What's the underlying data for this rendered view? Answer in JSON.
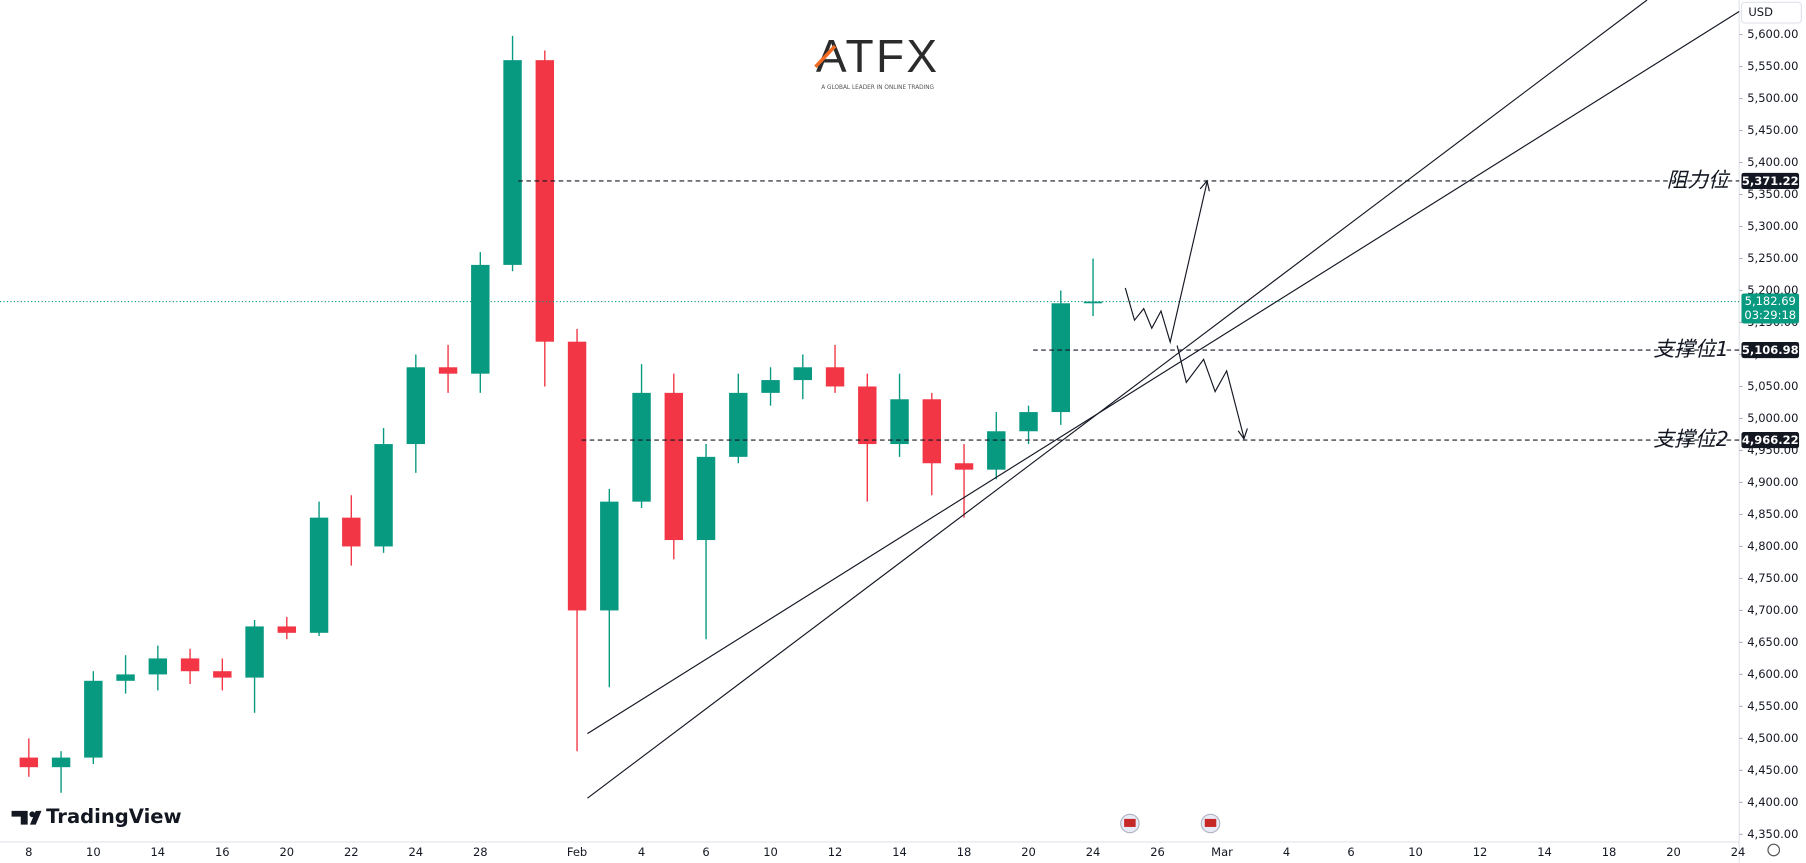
{
  "currency": "USD",
  "brand": {
    "name": "ATFX",
    "tagline": "A GLOBAL LEADER IN ONLINE TRADING"
  },
  "watermark": "TradingView",
  "countdown": "03:29:18",
  "chart_data": {
    "type": "candlestick",
    "up_color": "#089981",
    "down_color": "#f23645",
    "categories": [
      "8",
      null,
      "10",
      null,
      "14",
      null,
      "16",
      null,
      "20",
      null,
      "22",
      null,
      "24",
      null,
      "28",
      null,
      null,
      "Feb",
      null,
      "4",
      null,
      "6",
      null,
      "10",
      null,
      "12",
      null,
      "14",
      null,
      "18",
      null,
      "20",
      null,
      "24",
      null,
      "26",
      null,
      "Mar",
      null,
      "4",
      null,
      "6",
      null,
      "10",
      null,
      "12",
      null,
      "14",
      null,
      "18",
      null,
      "20",
      null,
      "24"
    ],
    "open": [
      4470,
      4455,
      4470,
      4590,
      4600,
      4625,
      4605,
      4595,
      4675,
      4665,
      4845,
      4800,
      4960,
      5080,
      5070,
      5240,
      5560,
      5120,
      4700,
      4870,
      5040,
      4810,
      4940,
      5040,
      5060,
      5080,
      5050,
      4960,
      5030,
      4930,
      4920,
      4980,
      5010,
      5180,
      null,
      null,
      null,
      null,
      null,
      null,
      null,
      null,
      null,
      null,
      null,
      null,
      null,
      null,
      null,
      null,
      null,
      null,
      null,
      null
    ],
    "high": [
      4500,
      4480,
      4605,
      4630,
      4645,
      4640,
      4625,
      4685,
      4690,
      4870,
      4880,
      4985,
      5100,
      5115,
      5260,
      5598,
      5575,
      5140,
      4890,
      5085,
      5070,
      4960,
      5070,
      5080,
      5100,
      5115,
      5070,
      5070,
      5040,
      4960,
      5010,
      5020,
      5200,
      5250,
      null,
      null,
      null,
      null,
      null,
      null,
      null,
      null,
      null,
      null,
      null,
      null,
      null,
      null,
      null,
      null,
      null,
      null,
      null,
      null
    ],
    "low": [
      4440,
      4415,
      4460,
      4570,
      4575,
      4585,
      4575,
      4540,
      4655,
      4660,
      4770,
      4790,
      4915,
      5040,
      5040,
      5230,
      5050,
      4480,
      4580,
      4860,
      4780,
      4655,
      4930,
      5020,
      5030,
      5040,
      4870,
      4940,
      4880,
      4845,
      4905,
      4960,
      4990,
      5160,
      null,
      null,
      null,
      null,
      null,
      null,
      null,
      null,
      null,
      null,
      null,
      null,
      null,
      null,
      null,
      null,
      null,
      null,
      null,
      null
    ],
    "close": [
      4455,
      4470,
      4590,
      4600,
      4625,
      4605,
      4595,
      4675,
      4665,
      4845,
      4800,
      4960,
      5080,
      5070,
      5240,
      5560,
      5120,
      4700,
      4870,
      5040,
      4810,
      4940,
      5040,
      5060,
      5080,
      5050,
      4960,
      5030,
      4930,
      4920,
      4980,
      5010,
      5180,
      5182.69,
      null,
      null,
      null,
      null,
      null,
      null,
      null,
      null,
      null,
      null,
      null,
      null,
      null,
      null,
      null,
      null,
      null,
      null,
      null,
      null
    ],
    "ylim": [
      4340,
      5654
    ],
    "yticks": [
      {
        "value": 4350,
        "label": "4,350.00"
      },
      {
        "value": 4400,
        "label": "4,400.00"
      },
      {
        "value": 4450,
        "label": "4,450.00"
      },
      {
        "value": 4500,
        "label": "4,500.00"
      },
      {
        "value": 4550,
        "label": "4,550.00"
      },
      {
        "value": 4600,
        "label": "4,600.00"
      },
      {
        "value": 4650,
        "label": "4,650.00"
      },
      {
        "value": 4700,
        "label": "4,700.00"
      },
      {
        "value": 4750,
        "label": "4,750.00"
      },
      {
        "value": 4800,
        "label": "4,800.00"
      },
      {
        "value": 4850,
        "label": "4,850.00"
      },
      {
        "value": 4900,
        "label": "4,900.00"
      },
      {
        "value": 4950,
        "label": "4,950.00"
      },
      {
        "value": 5000,
        "label": "5,000.00"
      },
      {
        "value": 5050,
        "label": "5,050.00"
      },
      {
        "value": 5100,
        "label": "5,100.00"
      },
      {
        "value": 5150,
        "label": "5,150.00"
      },
      {
        "value": 5200,
        "label": "5,200.00"
      },
      {
        "value": 5250,
        "label": "5,250.00"
      },
      {
        "value": 5300,
        "label": "5,300.00"
      },
      {
        "value": 5350,
        "label": "5,350.00"
      },
      {
        "value": 5400,
        "label": "5,400.00"
      },
      {
        "value": 5450,
        "label": "5,450.00"
      },
      {
        "value": 5500,
        "label": "5,500.00"
      },
      {
        "value": 5550,
        "label": "5,550.00"
      },
      {
        "value": 5600,
        "label": "5,600.00"
      }
    ],
    "current_price": {
      "value": 5182.69,
      "label": "5,182.69",
      "color": "#089981"
    },
    "levels": [
      {
        "name": "阻力位",
        "value": 5371.22,
        "label": "5,371.22"
      },
      {
        "name": "支撑位1",
        "value": 5106.98,
        "label": "5,106.98"
      },
      {
        "name": "支撑位2",
        "value": 4966.22,
        "label": "4,966.22"
      }
    ]
  }
}
